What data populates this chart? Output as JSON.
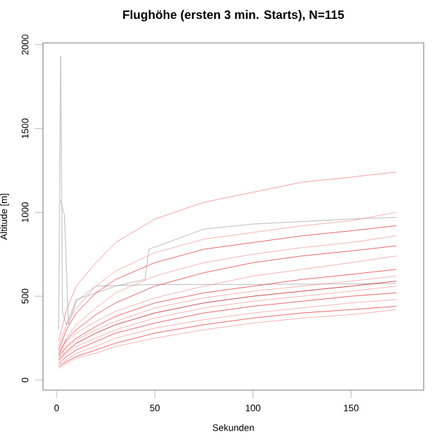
{
  "chart_data": {
    "type": "line",
    "title": "Flughöhe (ersten 3 min. Starts), N=115",
    "xlabel": "Sekunden",
    "ylabel": "Altitude [m]",
    "x": [
      1,
      5,
      10,
      20,
      30,
      50,
      75,
      100,
      125,
      150,
      173
    ],
    "xlim": [
      -7,
      187
    ],
    "ylim": [
      -60,
      2010
    ],
    "xticks": [
      0,
      50,
      100,
      150
    ],
    "yticks": [
      0,
      500,
      1000,
      1500,
      2000
    ],
    "grid": false,
    "line_style": "solid",
    "marker": "none",
    "series": [
      {
        "color": "#aaaaaa",
        "x": [
          1,
          2,
          3,
          5,
          10,
          30,
          45,
          47,
          75,
          100,
          150,
          173
        ],
        "values": [
          300,
          1930,
          400,
          330,
          480,
          560,
          600,
          780,
          900,
          930,
          960,
          970
        ]
      },
      {
        "color": "#aaaaaa",
        "x": [
          2,
          4,
          6,
          10,
          20,
          50,
          100,
          173
        ],
        "values": [
          1070,
          980,
          330,
          470,
          560,
          570,
          570,
          575
        ]
      },
      {
        "color": "#f08a8a",
        "values": [
          230,
          420,
          560,
          700,
          820,
          960,
          1060,
          1120,
          1180,
          1210,
          1240
        ]
      },
      {
        "color": "#f4a0a0",
        "values": [
          200,
          330,
          430,
          560,
          650,
          760,
          840,
          880,
          920,
          950,
          1000
        ]
      },
      {
        "color": "#e84040",
        "values": [
          180,
          300,
          400,
          520,
          600,
          700,
          780,
          820,
          860,
          890,
          920
        ]
      },
      {
        "color": "#f4a0a0",
        "values": [
          160,
          250,
          330,
          430,
          520,
          620,
          700,
          750,
          790,
          820,
          860
        ]
      },
      {
        "color": "#e84040",
        "values": [
          150,
          240,
          300,
          390,
          460,
          560,
          640,
          700,
          740,
          770,
          800
        ]
      },
      {
        "color": "#f4a0a0",
        "values": [
          170,
          230,
          280,
          350,
          410,
          490,
          560,
          620,
          660,
          700,
          740
        ]
      },
      {
        "color": "#e84040",
        "values": [
          140,
          200,
          250,
          320,
          380,
          460,
          520,
          560,
          600,
          630,
          660
        ]
      },
      {
        "color": "#f4a0a0",
        "values": [
          130,
          190,
          240,
          300,
          350,
          430,
          490,
          530,
          560,
          590,
          620
        ]
      },
      {
        "color": "#c02020",
        "values": [
          120,
          170,
          220,
          280,
          330,
          400,
          460,
          500,
          530,
          560,
          590
        ]
      },
      {
        "color": "#f4a0a0",
        "values": [
          110,
          160,
          200,
          250,
          300,
          370,
          430,
          470,
          500,
          530,
          560
        ]
      },
      {
        "color": "#e84040",
        "values": [
          100,
          140,
          180,
          230,
          280,
          340,
          400,
          440,
          470,
          500,
          520
        ]
      },
      {
        "color": "#f4a0a0",
        "values": [
          90,
          120,
          160,
          200,
          250,
          310,
          360,
          400,
          430,
          460,
          480
        ]
      },
      {
        "color": "#e84040",
        "values": [
          80,
          110,
          140,
          180,
          220,
          280,
          330,
          370,
          400,
          420,
          440
        ]
      },
      {
        "color": "#f4a0a0",
        "values": [
          70,
          100,
          130,
          160,
          200,
          250,
          300,
          340,
          370,
          390,
          420
        ]
      }
    ]
  }
}
